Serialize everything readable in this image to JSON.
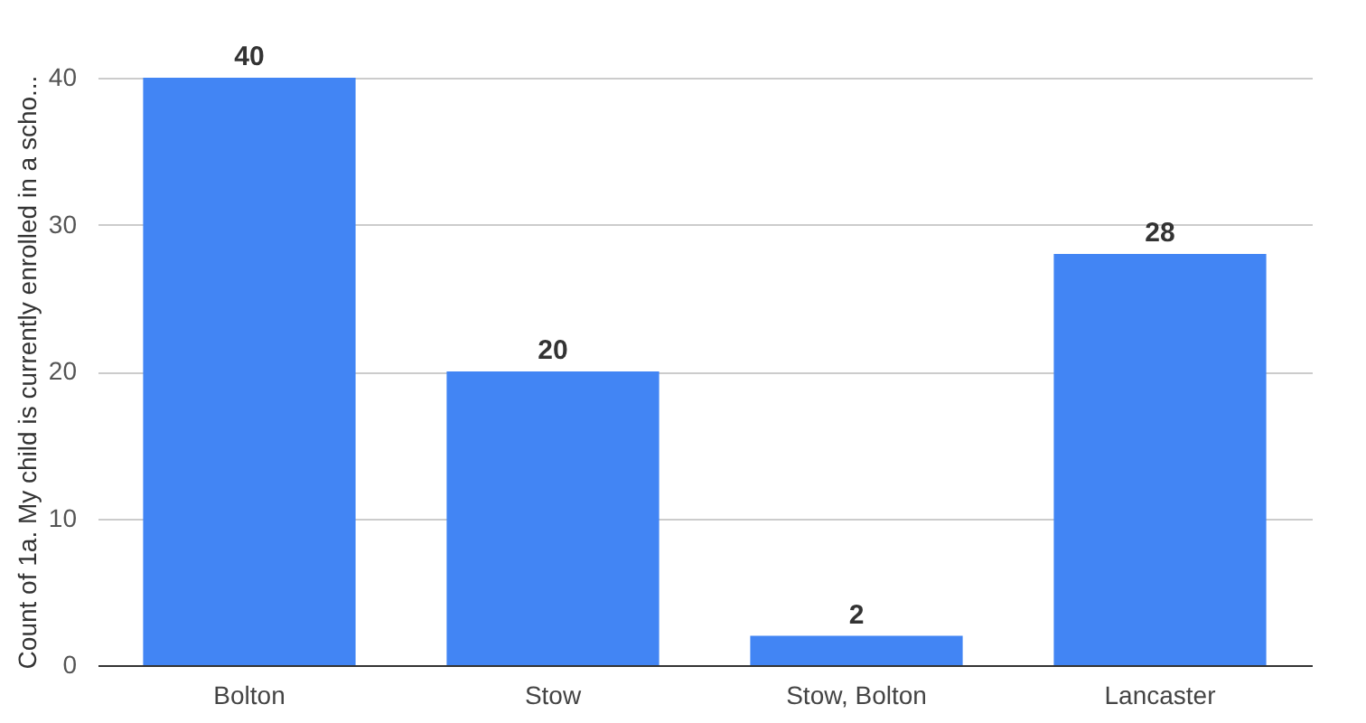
{
  "chart_data": {
    "type": "bar",
    "ylabel": "Count of 1a. My child is currently enrolled in a scho...",
    "categories": [
      "Bolton",
      "Stow",
      "Stow, Bolton",
      "Lancaster"
    ],
    "values": [
      40,
      20,
      2,
      28
    ],
    "color": "#4285f4",
    "ylim": [
      0,
      40
    ],
    "yticks": [
      0,
      10,
      20,
      30,
      40
    ],
    "grid": "y",
    "data_labels": true
  }
}
